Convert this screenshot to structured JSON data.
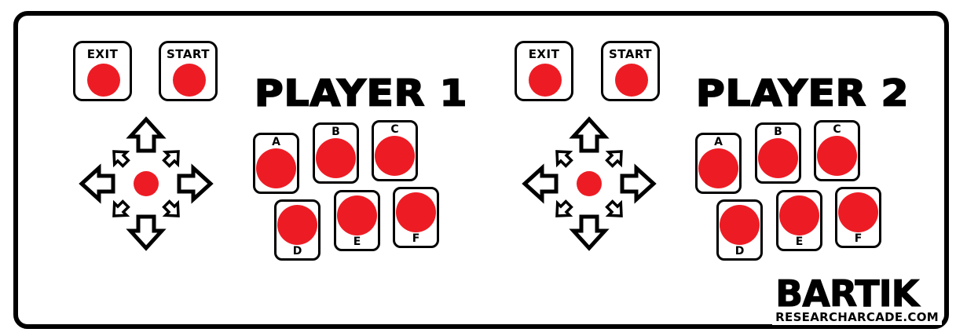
{
  "players": [
    {
      "title": "PLAYER 1",
      "system_buttons": {
        "exit_label": "EXIT",
        "start_label": "START"
      },
      "action_buttons": {
        "a": "A",
        "b": "B",
        "c": "C",
        "d": "D",
        "e": "E",
        "f": "F"
      }
    },
    {
      "title": "PLAYER 2",
      "system_buttons": {
        "exit_label": "EXIT",
        "start_label": "START"
      },
      "action_buttons": {
        "a": "A",
        "b": "B",
        "c": "C",
        "d": "D",
        "e": "E",
        "f": "F"
      }
    }
  ],
  "brand": {
    "name": "BARTIK",
    "url": "RESEARCHARCADE.COM"
  },
  "colors": {
    "button_red": "#ed1c24",
    "outline": "#000000",
    "background": "#ffffff"
  },
  "icons": {
    "joystick": "eight-direction-joystick-icon"
  }
}
